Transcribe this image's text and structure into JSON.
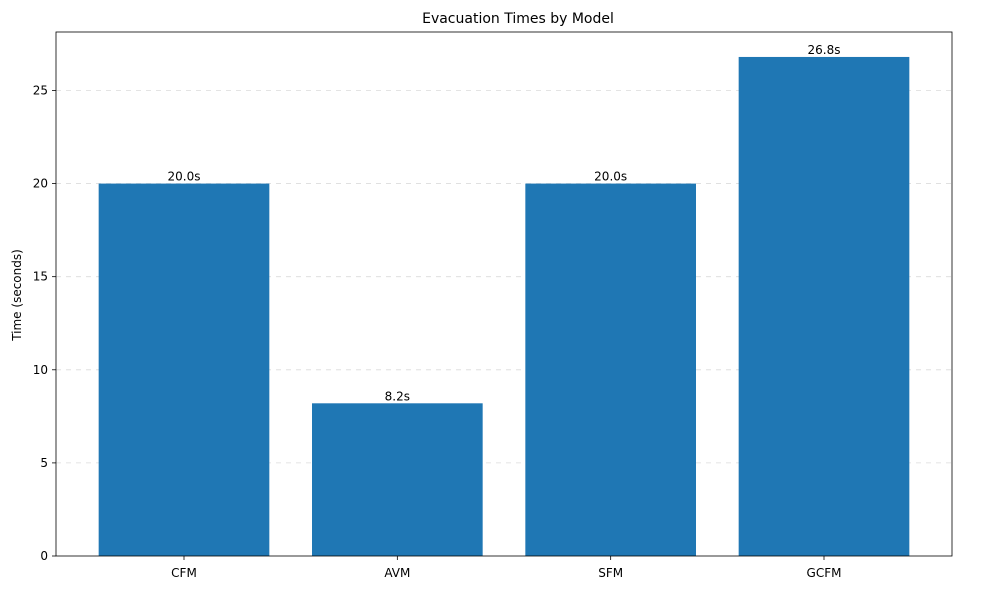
{
  "chart_data": {
    "type": "bar",
    "title": "Evacuation Times by Model",
    "xlabel": "",
    "ylabel": "Time (seconds)",
    "categories": [
      "CFM",
      "AVM",
      "SFM",
      "GCFM"
    ],
    "values": [
      20.0,
      8.2,
      20.0,
      26.8
    ],
    "data_labels": [
      "20.0s",
      "8.2s",
      "20.0s",
      "26.8s"
    ],
    "ylim": [
      0,
      28.14
    ],
    "yticks": [
      0,
      5,
      10,
      15,
      20,
      25
    ],
    "grid": "y-dashed",
    "legend": "none",
    "bar_color": "#1f77b4"
  }
}
